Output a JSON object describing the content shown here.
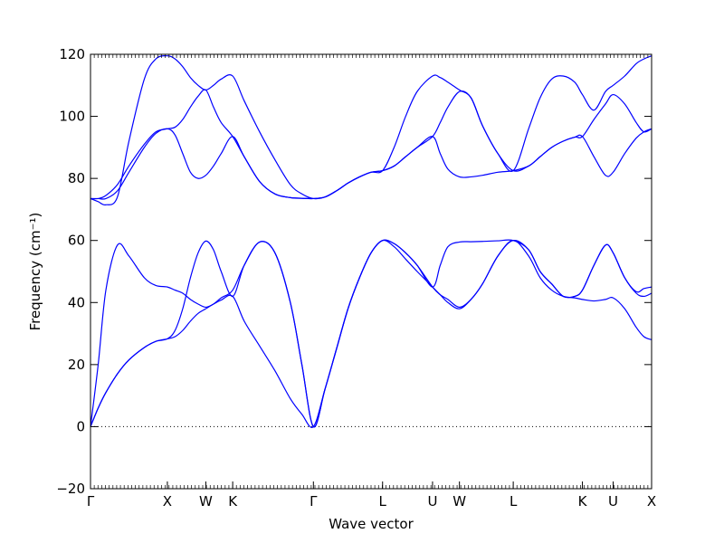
{
  "chart_data": {
    "type": "line",
    "xlabel": "Wave vector",
    "ylabel": "Frequency (cm⁻¹)",
    "ylim": [
      -20,
      120
    ],
    "y_ticks": [
      -20,
      0,
      20,
      40,
      60,
      80,
      100,
      120
    ],
    "grid": false,
    "legend": "none",
    "line_color": "#0000ff",
    "zero_line": {
      "y": 0,
      "style": "dotted",
      "color": "#000000"
    },
    "k_path": {
      "range": [
        0,
        7.3
      ],
      "points": [
        {
          "label": "Γ",
          "k": 0.0
        },
        {
          "label": "X",
          "k": 1.0
        },
        {
          "label": "W",
          "k": 1.5
        },
        {
          "label": "K",
          "k": 1.85
        },
        {
          "label": "Γ",
          "k": 2.9
        },
        {
          "label": "L",
          "k": 3.8
        },
        {
          "label": "U",
          "k": 4.45
        },
        {
          "label": "W",
          "k": 4.8
        },
        {
          "label": "L",
          "k": 5.5
        },
        {
          "label": "K",
          "k": 6.4
        },
        {
          "label": "U",
          "k": 6.8
        },
        {
          "label": "X",
          "k": 7.3
        }
      ]
    },
    "series": [
      {
        "x": [
          0,
          0.1,
          0.2,
          0.35,
          0.5,
          0.7,
          0.85,
          1.0,
          1.1,
          1.2,
          1.3,
          1.4,
          1.5,
          1.6,
          1.7,
          1.85,
          2.0,
          2.2,
          2.4,
          2.6,
          2.75,
          2.9,
          3.05,
          3.2,
          3.35,
          3.5,
          3.65,
          3.8,
          3.95,
          4.1,
          4.25,
          4.45,
          4.55,
          4.65,
          4.8,
          4.95,
          5.1,
          5.3,
          5.5,
          5.7,
          5.85,
          6.0,
          6.15,
          6.3,
          6.4,
          6.55,
          6.7,
          6.8,
          6.95,
          7.1,
          7.2,
          7.3
        ],
        "y": [
          0,
          6,
          11,
          17,
          21.5,
          25.5,
          27.5,
          28.3,
          29,
          31,
          34,
          36.5,
          38,
          39.5,
          40.8,
          42,
          34,
          26,
          18,
          9,
          4,
          0,
          12,
          25,
          38,
          48,
          56,
          60,
          58,
          54,
          50,
          45,
          42.5,
          40,
          38,
          41,
          46,
          55,
          60,
          55,
          48,
          44,
          42,
          41.5,
          41,
          40.5,
          41,
          41.5,
          38,
          32,
          29,
          28
        ]
      },
      {
        "x": [
          0,
          0.1,
          0.2,
          0.35,
          0.5,
          0.7,
          0.85,
          1.0,
          1.1,
          1.2,
          1.3,
          1.4,
          1.5,
          1.6,
          1.7,
          1.85,
          2.0,
          2.2,
          2.4,
          2.6,
          2.75,
          2.9,
          3.05,
          3.2,
          3.35,
          3.5,
          3.65,
          3.8,
          3.95,
          4.1,
          4.25,
          4.45,
          4.55,
          4.65,
          4.8,
          4.95,
          5.1,
          5.3,
          5.5,
          5.7,
          5.85,
          6.0,
          6.15,
          6.3,
          6.4,
          6.55,
          6.7,
          6.8,
          6.95,
          7.1,
          7.2,
          7.3
        ],
        "y": [
          0,
          6,
          11,
          17,
          21.5,
          25.5,
          27.5,
          28.3,
          31,
          38,
          48,
          56,
          59.8,
          57,
          50,
          42,
          52,
          59.5,
          56,
          40,
          20,
          0,
          12,
          25,
          38,
          48,
          56,
          60,
          59,
          56,
          52,
          45,
          42.5,
          41,
          38.5,
          41,
          46,
          55,
          60,
          57,
          50,
          46,
          42,
          42,
          44,
          52,
          58.5,
          56,
          48,
          43,
          42,
          43
        ]
      },
      {
        "x": [
          0,
          0.1,
          0.2,
          0.35,
          0.5,
          0.7,
          0.85,
          1.0,
          1.1,
          1.2,
          1.3,
          1.4,
          1.5,
          1.6,
          1.7,
          1.85,
          2.0,
          2.2,
          2.4,
          2.6,
          2.75,
          2.9,
          3.05,
          3.2,
          3.35,
          3.5,
          3.65,
          3.8,
          3.95,
          4.1,
          4.25,
          4.45,
          4.55,
          4.65,
          4.8,
          4.95,
          5.1,
          5.3,
          5.5,
          5.7,
          5.85,
          6.0,
          6.15,
          6.3,
          6.4,
          6.55,
          6.7,
          6.8,
          6.95,
          7.1,
          7.2,
          7.3
        ],
        "y": [
          0,
          20,
          44,
          58.5,
          55,
          48,
          45.5,
          45,
          44,
          43,
          41,
          39.5,
          38.5,
          39.5,
          41.5,
          44,
          52,
          59.5,
          56,
          40,
          20,
          0,
          12,
          25,
          38,
          48,
          56,
          60,
          59,
          56,
          52,
          45,
          52,
          58,
          59.5,
          59.6,
          59.7,
          59.9,
          60,
          57,
          50,
          46,
          42,
          42,
          44,
          52,
          58.5,
          56,
          48,
          43.5,
          44.5,
          45
        ]
      },
      {
        "x": [
          0,
          0.1,
          0.2,
          0.35,
          0.5,
          0.7,
          0.85,
          1.0,
          1.1,
          1.2,
          1.3,
          1.4,
          1.5,
          1.6,
          1.7,
          1.85,
          2.0,
          2.2,
          2.4,
          2.6,
          2.75,
          2.9,
          3.05,
          3.2,
          3.35,
          3.5,
          3.65,
          3.8,
          3.95,
          4.1,
          4.25,
          4.45,
          4.55,
          4.65,
          4.8,
          4.95,
          5.1,
          5.3,
          5.5,
          5.7,
          5.85,
          6.0,
          6.15,
          6.3,
          6.4,
          6.55,
          6.7,
          6.8,
          6.95,
          7.1,
          7.2,
          7.3
        ],
        "y": [
          73.5,
          73.5,
          73.5,
          76,
          82,
          90,
          94.5,
          96,
          94,
          88,
          82,
          80,
          81,
          84,
          88,
          93.5,
          87,
          79,
          75,
          73.8,
          73.6,
          73.5,
          74,
          76,
          78.5,
          80.5,
          82,
          82.5,
          84,
          87,
          90,
          93.5,
          88,
          83,
          80.5,
          80.5,
          81,
          82,
          82.5,
          84,
          87,
          90,
          92,
          93.3,
          93.5,
          87,
          81,
          82,
          88,
          93,
          95,
          96
        ]
      },
      {
        "x": [
          0,
          0.1,
          0.2,
          0.35,
          0.5,
          0.7,
          0.85,
          1.0,
          1.1,
          1.2,
          1.3,
          1.4,
          1.5,
          1.6,
          1.7,
          1.85,
          2.0,
          2.2,
          2.4,
          2.6,
          2.75,
          2.9,
          3.05,
          3.2,
          3.35,
          3.5,
          3.65,
          3.8,
          3.95,
          4.1,
          4.25,
          4.45,
          4.55,
          4.65,
          4.8,
          4.95,
          5.1,
          5.3,
          5.5,
          5.7,
          5.85,
          6.0,
          6.15,
          6.3,
          6.4,
          6.55,
          6.7,
          6.8,
          6.95,
          7.1,
          7.2,
          7.3
        ],
        "y": [
          73.5,
          73.5,
          74.5,
          78,
          84,
          91,
          95,
          96,
          96.5,
          99,
          103,
          106.5,
          108.5,
          103,
          98,
          93.5,
          87,
          79,
          75,
          73.8,
          73.6,
          73.5,
          74,
          76,
          78.5,
          80.5,
          82,
          82.5,
          84,
          87,
          90,
          93.5,
          98,
          103,
          108,
          106,
          97,
          88,
          82.5,
          84,
          87,
          90,
          92,
          93.3,
          93.5,
          99,
          104,
          107,
          104,
          98,
          95,
          96
        ]
      },
      {
        "x": [
          0,
          0.1,
          0.2,
          0.35,
          0.5,
          0.7,
          0.85,
          1.0,
          1.1,
          1.2,
          1.3,
          1.4,
          1.5,
          1.6,
          1.7,
          1.85,
          2.0,
          2.2,
          2.4,
          2.6,
          2.75,
          2.9,
          3.05,
          3.2,
          3.35,
          3.5,
          3.65,
          3.8,
          3.95,
          4.1,
          4.25,
          4.45,
          4.55,
          4.65,
          4.8,
          4.95,
          5.1,
          5.3,
          5.5,
          5.7,
          5.85,
          6.0,
          6.15,
          6.3,
          6.4,
          6.55,
          6.7,
          6.8,
          6.95,
          7.1,
          7.2,
          7.3
        ],
        "y": [
          73.5,
          72.5,
          71.5,
          74,
          92,
          112,
          118.5,
          119.5,
          118.5,
          116,
          112.5,
          110,
          108.5,
          110,
          112,
          113,
          105,
          95,
          86,
          78,
          75,
          73.5,
          74,
          76,
          78.5,
          80.5,
          82,
          82.5,
          90,
          100,
          108,
          113,
          112.5,
          111,
          108.5,
          106,
          97,
          88,
          82.5,
          96,
          106,
          112,
          113,
          111,
          107,
          102,
          108,
          110,
          113,
          117,
          118.5,
          119.5
        ]
      }
    ]
  }
}
